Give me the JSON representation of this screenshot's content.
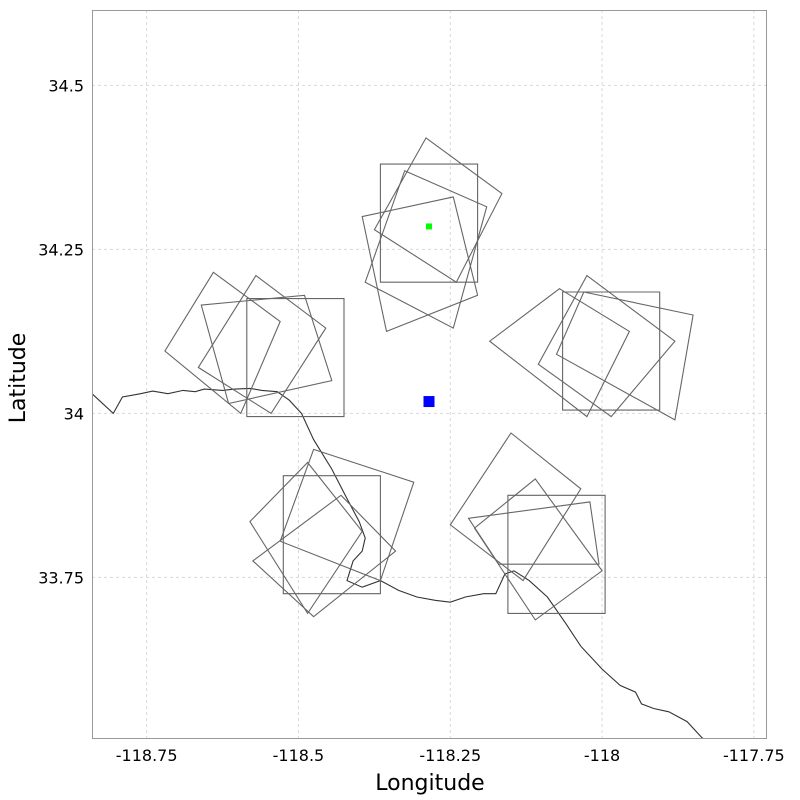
{
  "chart_data": {
    "type": "scatter",
    "title": "",
    "xlabel": "Longitude",
    "ylabel": "Latitude",
    "xlim": [
      -118.84,
      -117.73
    ],
    "ylim": [
      33.505,
      34.615
    ],
    "xticks": [
      -118.75,
      -118.5,
      -118.25,
      -118,
      -117.75
    ],
    "yticks": [
      33.75,
      34,
      34.25,
      34.5
    ],
    "xtick_labels": [
      "-118.75",
      "-118.5",
      "-118.25",
      "-118",
      "-117.75"
    ],
    "ytick_labels": [
      "33.75",
      "34",
      "34.25",
      "34.5"
    ],
    "grid": true,
    "colors": {
      "center_marker": "#0000ff",
      "point_marker": "#00ff00",
      "footprint": "#666666",
      "coastline": "#333333"
    },
    "center_point": {
      "lon": -118.285,
      "lat": 34.018,
      "marker": "square"
    },
    "highlight_point": {
      "lon": -118.285,
      "lat": 34.285,
      "marker": "square"
    },
    "footprints": [
      [
        [
          -118.365,
          34.38
        ],
        [
          -118.205,
          34.38
        ],
        [
          -118.205,
          34.2
        ],
        [
          -118.365,
          34.2
        ]
      ],
      [
        [
          -118.29,
          34.42
        ],
        [
          -118.165,
          34.335
        ],
        [
          -118.24,
          34.2
        ],
        [
          -118.375,
          34.28
        ]
      ],
      [
        [
          -118.325,
          34.37
        ],
        [
          -118.19,
          34.315
        ],
        [
          -118.245,
          34.13
        ],
        [
          -118.39,
          34.2
        ]
      ],
      [
        [
          -118.395,
          34.3
        ],
        [
          -118.245,
          34.33
        ],
        [
          -118.205,
          34.18
        ],
        [
          -118.355,
          34.125
        ]
      ],
      [
        [
          -118.585,
          34.175
        ],
        [
          -118.425,
          34.175
        ],
        [
          -118.425,
          33.995
        ],
        [
          -118.585,
          33.995
        ]
      ],
      [
        [
          -118.64,
          34.215
        ],
        [
          -118.53,
          34.14
        ],
        [
          -118.595,
          34.0
        ],
        [
          -118.72,
          34.095
        ]
      ],
      [
        [
          -118.57,
          34.21
        ],
        [
          -118.455,
          34.13
        ],
        [
          -118.545,
          34.0
        ],
        [
          -118.665,
          34.07
        ]
      ],
      [
        [
          -118.66,
          34.165
        ],
        [
          -118.49,
          34.18
        ],
        [
          -118.445,
          34.05
        ],
        [
          -118.615,
          34.015
        ]
      ],
      [
        [
          -118.065,
          34.185
        ],
        [
          -117.905,
          34.185
        ],
        [
          -117.905,
          34.005
        ],
        [
          -118.065,
          34.005
        ]
      ],
      [
        [
          -118.07,
          34.19
        ],
        [
          -117.955,
          34.125
        ],
        [
          -118.025,
          33.995
        ],
        [
          -118.185,
          34.11
        ]
      ],
      [
        [
          -118.025,
          34.21
        ],
        [
          -117.88,
          34.11
        ],
        [
          -117.985,
          33.995
        ],
        [
          -118.105,
          34.075
        ]
      ],
      [
        [
          -118.03,
          34.185
        ],
        [
          -117.85,
          34.15
        ],
        [
          -117.88,
          33.99
        ],
        [
          -118.075,
          34.09
        ]
      ],
      [
        [
          -118.525,
          33.905
        ],
        [
          -118.365,
          33.905
        ],
        [
          -118.365,
          33.725
        ],
        [
          -118.525,
          33.725
        ]
      ],
      [
        [
          -118.475,
          33.945
        ],
        [
          -118.31,
          33.895
        ],
        [
          -118.365,
          33.745
        ],
        [
          -118.53,
          33.805
        ]
      ],
      [
        [
          -118.485,
          33.925
        ],
        [
          -118.395,
          33.82
        ],
        [
          -118.485,
          33.695
        ],
        [
          -118.58,
          33.835
        ]
      ],
      [
        [
          -118.43,
          33.875
        ],
        [
          -118.34,
          33.79
        ],
        [
          -118.475,
          33.69
        ],
        [
          -118.575,
          33.775
        ]
      ],
      [
        [
          -118.155,
          33.875
        ],
        [
          -117.995,
          33.875
        ],
        [
          -117.995,
          33.695
        ],
        [
          -118.155,
          33.695
        ]
      ],
      [
        [
          -118.15,
          33.97
        ],
        [
          -118.035,
          33.885
        ],
        [
          -118.13,
          33.745
        ],
        [
          -118.25,
          33.83
        ]
      ],
      [
        [
          -118.22,
          33.84
        ],
        [
          -118.02,
          33.865
        ],
        [
          -118.005,
          33.77
        ],
        [
          -118.17,
          33.77
        ]
      ],
      [
        [
          -118.11,
          33.9
        ],
        [
          -118.0,
          33.76
        ],
        [
          -118.11,
          33.685
        ],
        [
          -118.21,
          33.825
        ]
      ]
    ],
    "coastline": [
      [
        -118.84,
        34.03
      ],
      [
        -118.805,
        34.0
      ],
      [
        -118.79,
        34.025
      ],
      [
        -118.76,
        34.03
      ],
      [
        -118.74,
        34.034
      ],
      [
        -118.715,
        34.03
      ],
      [
        -118.69,
        34.035
      ],
      [
        -118.67,
        34.033
      ],
      [
        -118.655,
        34.037
      ],
      [
        -118.625,
        34.035
      ],
      [
        -118.605,
        34.037
      ],
      [
        -118.58,
        34.038
      ],
      [
        -118.56,
        34.035
      ],
      [
        -118.535,
        34.033
      ],
      [
        -118.515,
        34.02
      ],
      [
        -118.495,
        34.0
      ],
      [
        -118.475,
        33.96
      ],
      [
        -118.445,
        33.915
      ],
      [
        -118.42,
        33.87
      ],
      [
        -118.4,
        33.835
      ],
      [
        -118.39,
        33.81
      ],
      [
        -118.395,
        33.79
      ],
      [
        -118.41,
        33.775
      ],
      [
        -118.42,
        33.745
      ],
      [
        -118.395,
        33.735
      ],
      [
        -118.365,
        33.745
      ],
      [
        -118.335,
        33.73
      ],
      [
        -118.305,
        33.72
      ],
      [
        -118.275,
        33.715
      ],
      [
        -118.25,
        33.712
      ],
      [
        -118.225,
        33.72
      ],
      [
        -118.195,
        33.725
      ],
      [
        -118.175,
        33.725
      ],
      [
        -118.16,
        33.755
      ],
      [
        -118.145,
        33.76
      ],
      [
        -118.12,
        33.745
      ],
      [
        -118.09,
        33.72
      ],
      [
        -118.06,
        33.68
      ],
      [
        -118.035,
        33.645
      ],
      [
        -118.0,
        33.61
      ],
      [
        -117.97,
        33.585
      ],
      [
        -117.945,
        33.575
      ],
      [
        -117.935,
        33.557
      ],
      [
        -117.915,
        33.55
      ],
      [
        -117.89,
        33.545
      ],
      [
        -117.86,
        33.53
      ],
      [
        -117.835,
        33.505
      ],
      [
        -117.81,
        33.495
      ],
      [
        -117.79,
        33.475
      ],
      [
        -117.77,
        33.455
      ]
    ]
  }
}
